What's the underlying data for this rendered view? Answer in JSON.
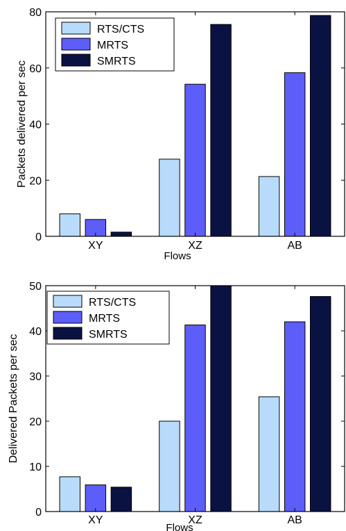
{
  "colors": {
    "RTS/CTS": "#b9dbfb",
    "MRTS": "#5d5df9",
    "SMRTS": "#0a1242",
    "axis": "#000000",
    "background": "#ffffff"
  },
  "chart_data": [
    {
      "type": "bar",
      "title": "",
      "xlabel": "Flows",
      "ylabel": "Packets delivered per sec",
      "categories": [
        "XY",
        "XZ",
        "AB"
      ],
      "ylim": [
        0,
        80
      ],
      "yticks": [
        0,
        20,
        40,
        60,
        80
      ],
      "grid": false,
      "legend_position": "top-left",
      "series": [
        {
          "name": "RTS/CTS",
          "values": [
            8,
            27.5,
            21.3
          ]
        },
        {
          "name": "MRTS",
          "values": [
            6,
            54.2,
            58.3
          ]
        },
        {
          "name": "SMRTS",
          "values": [
            1.5,
            75.5,
            78.7
          ]
        }
      ]
    },
    {
      "type": "bar",
      "title": "",
      "xlabel": "Flows",
      "ylabel": "Delivered Packets per sec",
      "categories": [
        "XY",
        "XZ",
        "AB"
      ],
      "ylim": [
        0,
        50
      ],
      "yticks": [
        0,
        10,
        20,
        30,
        40,
        50
      ],
      "grid": false,
      "legend_position": "top-left",
      "series": [
        {
          "name": "RTS/CTS",
          "values": [
            7.7,
            20,
            25.4
          ]
        },
        {
          "name": "MRTS",
          "values": [
            5.9,
            41.3,
            42
          ]
        },
        {
          "name": "SMRTS",
          "values": [
            5.4,
            50,
            47.6
          ]
        }
      ]
    }
  ]
}
